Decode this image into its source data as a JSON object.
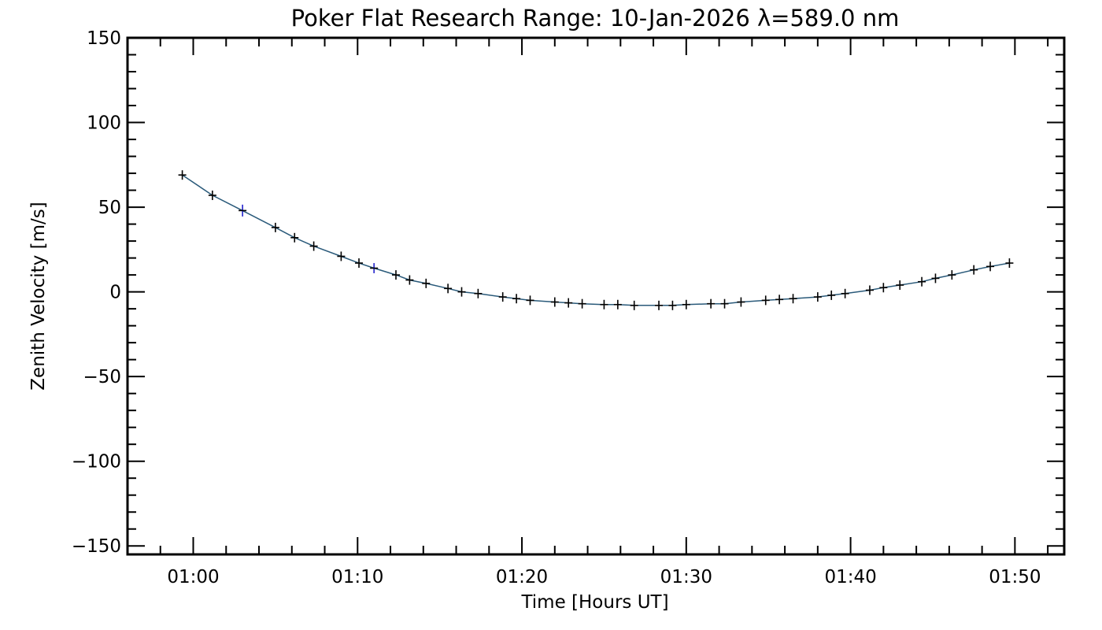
{
  "chart_data": {
    "type": "scatter",
    "title": "Poker Flat Research Range: 10-Jan-2026 λ=589.0 nm",
    "xlabel": "Time [Hours UT]",
    "ylabel": "Zenith Velocity [m/s]",
    "xlim": [
      "00:56",
      "01:53"
    ],
    "ylim": [
      -155,
      150
    ],
    "x_ticks": [
      "01:00",
      "01:10",
      "01:20",
      "01:30",
      "01:40",
      "01:50"
    ],
    "y_ticks": [
      150,
      100,
      50,
      0,
      -50,
      -100,
      -150
    ],
    "grid": false,
    "legend": "none",
    "colors": {
      "points": "#000000",
      "error_bars_highlight": "#2222cc",
      "fit_line": "#2a5a7a",
      "axes": "#000000"
    },
    "series": [
      {
        "x": [
          "00:59:20",
          "01:01:10",
          "01:03:00",
          "01:05:00",
          "01:06:10",
          "01:07:20",
          "01:09:00",
          "01:10:05",
          "01:11:00",
          "01:12:20",
          "01:13:10",
          "01:14:10",
          "01:15:30",
          "01:16:20",
          "01:17:20",
          "01:18:50",
          "01:19:40",
          "01:20:30",
          "01:22:00",
          "01:22:50",
          "01:23:40",
          "01:25:00",
          "01:25:50",
          "01:26:50",
          "01:28:20",
          "01:29:10",
          "01:30:00",
          "01:31:30",
          "01:32:20",
          "01:33:20",
          "01:34:50",
          "01:35:40",
          "01:36:30",
          "01:38:00",
          "01:38:50",
          "01:39:40",
          "01:41:10",
          "01:42:00",
          "01:43:00",
          "01:44:20",
          "01:45:10",
          "01:46:10",
          "01:47:30",
          "01:48:30",
          "01:49:40"
        ],
        "values": [
          69,
          57,
          48,
          38,
          32,
          27,
          21,
          17,
          14,
          10,
          7,
          5,
          2,
          0,
          -1,
          -3,
          -4,
          -5,
          -6,
          -6.5,
          -7,
          -7.5,
          -7.5,
          -8,
          -8,
          -8,
          -7.5,
          -7,
          -7,
          -6,
          -5,
          -4.5,
          -4,
          -3,
          -2,
          -1,
          1,
          2.5,
          4,
          6,
          8,
          10,
          13,
          15,
          17
        ],
        "error": [
          1.5,
          1.5,
          3.5,
          1.5,
          1.5,
          1.5,
          1.5,
          1.5,
          3,
          1.5,
          1.5,
          1.5,
          1.5,
          1.5,
          1.5,
          1.5,
          1.5,
          1.5,
          1.5,
          1.5,
          1.5,
          1.5,
          1.5,
          1.5,
          1.5,
          1.5,
          1.5,
          1.5,
          1.5,
          1.5,
          1.5,
          1.5,
          1.5,
          1.5,
          1.5,
          1.5,
          1.5,
          1.5,
          1.5,
          1.5,
          1.5,
          1.5,
          1.5,
          1.5,
          1.5
        ]
      }
    ]
  }
}
